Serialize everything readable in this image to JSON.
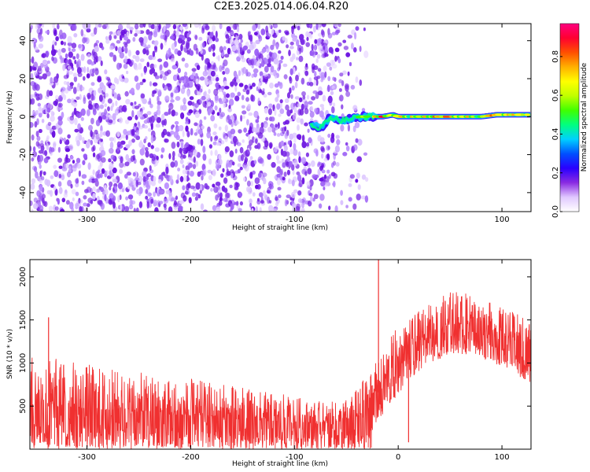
{
  "title": "C2E3.2025.014.06.04.R20",
  "chart_data": [
    {
      "type": "heatmap",
      "xlabel": "Height of straight line (km)",
      "ylabel": "Frequency (Hz)",
      "xlim": [
        -355,
        128
      ],
      "ylim": [
        -50,
        49
      ],
      "xticks": [
        -300,
        -200,
        -100,
        0,
        100
      ],
      "xtick_labels": [
        "-300",
        "-200",
        "-100",
        "0",
        "100"
      ],
      "yticks": [
        -40,
        -20,
        0,
        20,
        40
      ],
      "ytick_labels": [
        "-40",
        "-20",
        "0",
        "20",
        "40"
      ],
      "colorbar": {
        "label": "Normalized spectral amplitude",
        "range": [
          0,
          0.97
        ],
        "ticks": [
          0.0,
          0.2,
          0.4,
          0.6,
          0.8
        ],
        "tick_labels": [
          "0.0",
          "0.2",
          "0.4",
          "0.6",
          "0.8"
        ],
        "colors": [
          "#ffffff",
          "#e0c8ff",
          "#8a2be2",
          "#2a00ff",
          "#0050ff",
          "#00d0ff",
          "#00ff80",
          "#40ff00",
          "#c0ff00",
          "#ffff00",
          "#ffb000",
          "#ff5000",
          "#ff0030",
          "#ff0080"
        ]
      },
      "noise_region": {
        "x_range": [
          -355,
          -30
        ],
        "freq_range": [
          -50,
          49
        ],
        "typical_amplitude": 0.15
      },
      "signal_track": {
        "x": [
          -85,
          -75,
          -65,
          -55,
          -45,
          -35,
          -25,
          -15,
          -5,
          0,
          20,
          40,
          60,
          80,
          95,
          110,
          128
        ],
        "frequency": [
          -4,
          -6,
          0,
          -2,
          -1,
          0,
          0,
          0,
          1,
          0,
          0,
          0,
          0,
          0,
          1,
          1,
          1
        ],
        "amplitude": [
          0.2,
          0.25,
          0.3,
          0.35,
          0.4,
          0.5,
          0.7,
          0.85,
          0.6,
          0.7,
          0.8,
          0.75,
          0.8,
          0.75,
          0.9,
          0.7,
          0.6
        ]
      },
      "grid": false,
      "color": "#8a2be2"
    },
    {
      "type": "line",
      "xlabel": "Height of straight line (km)",
      "ylabel": "SNR (10 * v/v)",
      "xlim": [
        -355,
        128
      ],
      "ylim": [
        0,
        2200
      ],
      "xticks": [
        -300,
        -200,
        -100,
        0,
        100
      ],
      "xtick_labels": [
        "-300",
        "-200",
        "-100",
        "0",
        "100"
      ],
      "yticks": [
        500,
        1000,
        1500,
        2000
      ],
      "ytick_labels": [
        "500",
        "1000",
        "1500",
        "2000"
      ],
      "series": [
        {
          "color": "#f03030",
          "x": [
            -355,
            -340,
            -320,
            -300,
            -280,
            -260,
            -240,
            -220,
            -200,
            -180,
            -160,
            -140,
            -120,
            -100,
            -80,
            -60,
            -45,
            -35,
            -28,
            -25,
            -20,
            -15,
            -10,
            0,
            10,
            20,
            30,
            40,
            50,
            60,
            70,
            80,
            90,
            100,
            110,
            120,
            128
          ],
          "lower": [
            0,
            0,
            0,
            0,
            0,
            0,
            0,
            0,
            0,
            0,
            0,
            0,
            0,
            0,
            0,
            0,
            0,
            0,
            0,
            0,
            300,
            400,
            500,
            600,
            800,
            900,
            1000,
            1050,
            1100,
            1100,
            1100,
            1050,
            1000,
            950,
            900,
            800,
            750
          ],
          "mean": [
            520,
            500,
            480,
            470,
            450,
            440,
            420,
            400,
            390,
            370,
            350,
            330,
            320,
            300,
            290,
            290,
            320,
            420,
            560,
            640,
            650,
            700,
            900,
            1000,
            1150,
            1250,
            1350,
            1400,
            1450,
            1450,
            1450,
            1420,
            1380,
            1330,
            1280,
            1200,
            1150
          ],
          "upper": [
            1150,
            1100,
            1050,
            1000,
            950,
            900,
            880,
            850,
            820,
            780,
            750,
            700,
            650,
            620,
            560,
            550,
            620,
            800,
            900,
            1000,
            1000,
            1100,
            1250,
            1450,
            1500,
            1600,
            1700,
            1750,
            1850,
            1850,
            1800,
            1750,
            1700,
            1650,
            1600,
            1550,
            1500
          ],
          "spikes": [
            {
              "x": -19,
              "y": 2200
            },
            {
              "x": -337,
              "y": 1530
            },
            {
              "x": 10,
              "y": 80
            }
          ]
        }
      ],
      "grid": false
    }
  ]
}
